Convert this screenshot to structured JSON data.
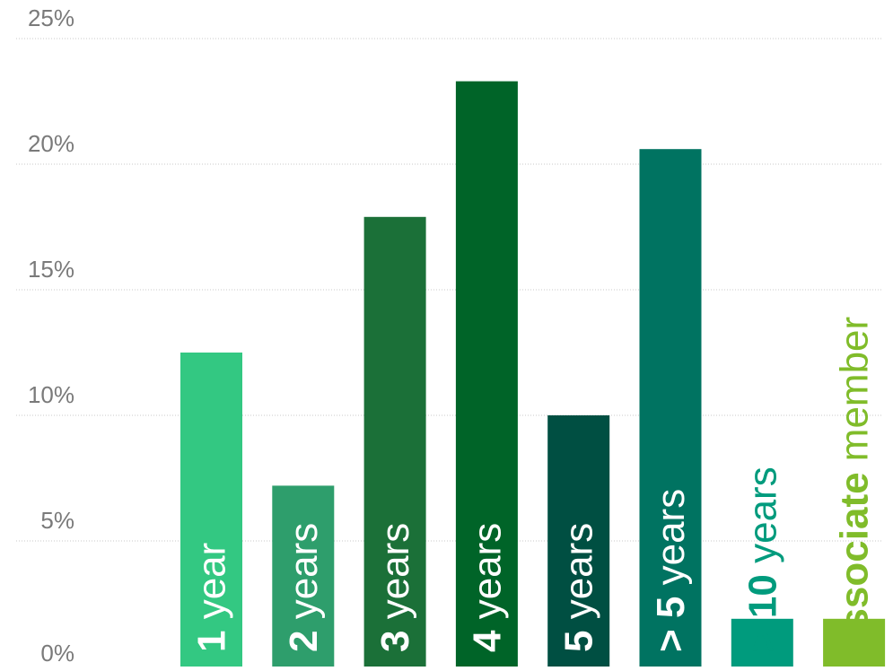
{
  "chart_data": {
    "type": "bar",
    "title": "",
    "xlabel": "",
    "ylabel": "",
    "ylim": [
      0,
      25
    ],
    "yticks": [
      "0%",
      "5%",
      "10%",
      "15%",
      "20%",
      "25%"
    ],
    "grid": true,
    "categories": [
      {
        "num": "1",
        "word": " year"
      },
      {
        "num": "2",
        "word": " years"
      },
      {
        "num": "3",
        "word": " years"
      },
      {
        "num": "4",
        "word": " years"
      },
      {
        "num": "5",
        "word": " years"
      },
      {
        "num": "> 5",
        "word": " years"
      },
      {
        "num": "> 10",
        "word": " years"
      },
      {
        "num": "associate",
        "word": " member"
      }
    ],
    "values": [
      12.5,
      7.2,
      17.9,
      23.3,
      10.0,
      20.6,
      1.9,
      1.9
    ],
    "colors": [
      "#33c882",
      "#2e9e6c",
      "#1b7038",
      "#006428",
      "#004f42",
      "#007361",
      "#009b7d",
      "#80bc2a"
    ]
  }
}
